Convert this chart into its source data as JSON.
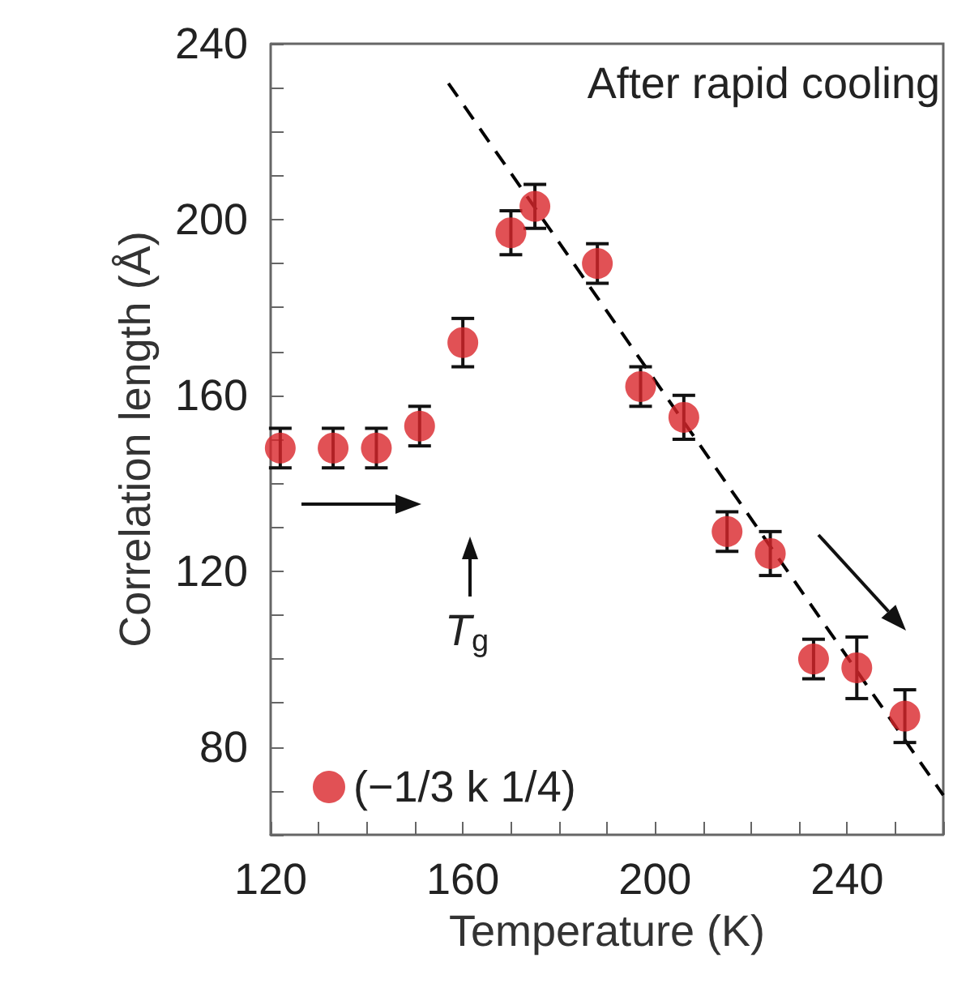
{
  "chart_data": {
    "type": "scatter",
    "xlabel": "Temperature (K)",
    "ylabel": "Correlation length (Å)",
    "xlim": [
      120,
      260
    ],
    "ylim": [
      60,
      240
    ],
    "xticks": [
      120,
      {
        "value": 130,
        "label": null
      },
      {
        "value": 140,
        "label": null
      },
      {
        "value": 150,
        "label": null
      },
      160,
      {
        "value": 170,
        "label": null
      },
      {
        "value": 180,
        "label": null
      },
      {
        "value": 190,
        "label": null
      },
      200,
      {
        "value": 210,
        "label": null
      },
      {
        "value": 220,
        "label": null
      },
      {
        "value": 230,
        "label": null
      },
      240,
      {
        "value": 250,
        "label": null
      },
      {
        "value": 260,
        "label": null
      }
    ],
    "yticks": [
      {
        "value": 60,
        "label": null
      },
      {
        "value": 70,
        "label": null
      },
      80,
      {
        "value": 90,
        "label": null
      },
      {
        "value": 100,
        "label": null
      },
      {
        "value": 110,
        "label": null
      },
      120,
      {
        "value": 130,
        "label": null
      },
      {
        "value": 140,
        "label": null
      },
      {
        "value": 150,
        "label": null
      },
      160,
      {
        "value": 170,
        "label": null
      },
      {
        "value": 180,
        "label": null
      },
      {
        "value": 190,
        "label": null
      },
      200,
      {
        "value": 210,
        "label": null
      },
      {
        "value": 220,
        "label": null
      },
      {
        "value": 230,
        "label": null
      },
      240
    ],
    "grid": false,
    "legend": "bottom left",
    "marker": "circle",
    "series": [
      {
        "name": "(−1/3 k 1/4)",
        "color": "#d9252b",
        "x": [
          122,
          133,
          142,
          151,
          160,
          170,
          175,
          188,
          197,
          206,
          215,
          224,
          233,
          242,
          252
        ],
        "values": [
          148,
          148,
          148,
          153,
          172,
          197,
          203,
          190,
          162,
          155,
          129,
          124,
          100,
          98,
          87
        ],
        "errors": [
          4.5,
          4.5,
          4.5,
          4.5,
          5.5,
          5,
          5,
          4.5,
          4.5,
          5,
          4.5,
          5,
          4.5,
          7,
          6
        ]
      },
      {
        "type": "line",
        "color": "#000000",
        "line_style": "dashed",
        "marker": "none",
        "x": [
          157,
          260
        ],
        "values": [
          231,
          69
        ]
      }
    ],
    "annotations": [
      "After rapid cooling",
      "T$_{g}$"
    ]
  }
}
